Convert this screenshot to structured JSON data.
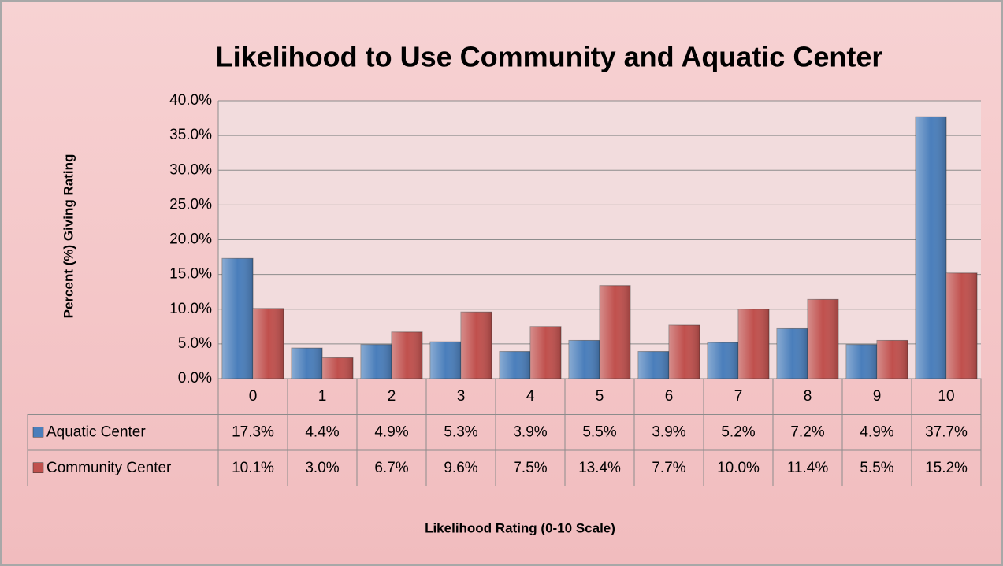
{
  "chart_data": {
    "type": "bar",
    "title": "Likelihood to Use Community and Aquatic Center",
    "y_label": "Percent (%) Giving Rating",
    "x_label": "Likelihood Rating (0-10 Scale)",
    "categories": [
      "0",
      "1",
      "2",
      "3",
      "4",
      "5",
      "6",
      "7",
      "8",
      "9",
      "10"
    ],
    "series": [
      {
        "name": "Aquatic Center",
        "color": "#4a7ebb",
        "values": [
          17.3,
          4.4,
          4.9,
          5.3,
          3.9,
          5.5,
          3.9,
          5.2,
          7.2,
          4.9,
          37.7
        ],
        "value_labels": [
          "17.3%",
          "4.4%",
          "4.9%",
          "5.3%",
          "3.9%",
          "5.5%",
          "3.9%",
          "5.2%",
          "7.2%",
          "4.9%",
          "37.7%"
        ]
      },
      {
        "name": "Community Center",
        "color": "#c0504d",
        "values": [
          10.1,
          3.0,
          6.7,
          9.6,
          7.5,
          13.4,
          7.7,
          10.0,
          11.4,
          5.5,
          15.2
        ],
        "value_labels": [
          "10.1%",
          "3.0%",
          "6.7%",
          "9.6%",
          "7.5%",
          "13.4%",
          "7.7%",
          "10.0%",
          "11.4%",
          "5.5%",
          "15.2%"
        ]
      }
    ],
    "ylim": [
      0,
      40
    ],
    "yticks": [
      {
        "value": 0,
        "label": "0.0%"
      },
      {
        "value": 5,
        "label": "5.0%"
      },
      {
        "value": 10,
        "label": "10.0%"
      },
      {
        "value": 15,
        "label": "15.0%"
      },
      {
        "value": 20,
        "label": "20.0%"
      },
      {
        "value": 25,
        "label": "25.0%"
      },
      {
        "value": 30,
        "label": "30.0%"
      },
      {
        "value": 35,
        "label": "35.0%"
      },
      {
        "value": 40,
        "label": "40.0%"
      }
    ],
    "grid": true
  }
}
